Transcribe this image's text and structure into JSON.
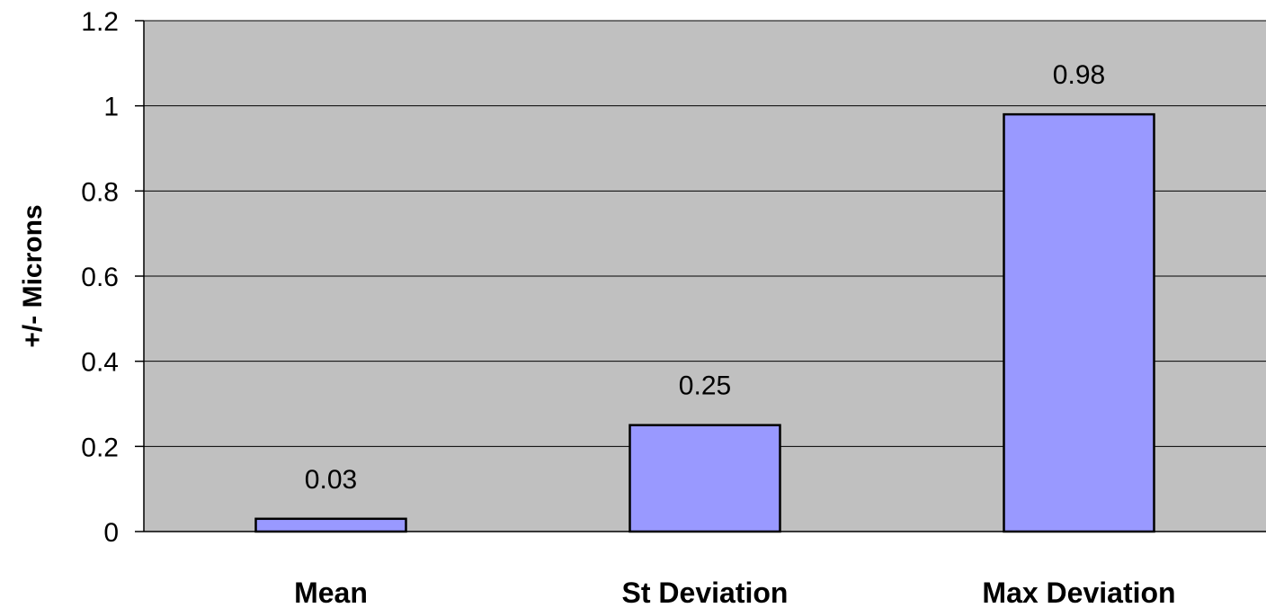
{
  "chart_data": {
    "type": "bar",
    "categories": [
      "Mean",
      "St Deviation",
      "Max Deviation"
    ],
    "values": [
      0.03,
      0.25,
      0.98
    ],
    "data_labels": [
      "0.03",
      "0.25",
      "0.98"
    ],
    "title": "",
    "xlabel": "",
    "ylabel": "+/- Microns",
    "ylim": [
      0,
      1.2
    ],
    "yticks": [
      0,
      0.2,
      0.4,
      0.6,
      0.8,
      1,
      1.2
    ],
    "ytick_labels": [
      "0",
      "0.2",
      "0.4",
      "0.6",
      "0.8",
      "1",
      "1.2"
    ],
    "grid": true,
    "legend": false,
    "colors": {
      "plot_background": "#c0c0c0",
      "bar_fill": "#9999ff",
      "bar_stroke": "#000000",
      "gridline": "#000000"
    }
  }
}
